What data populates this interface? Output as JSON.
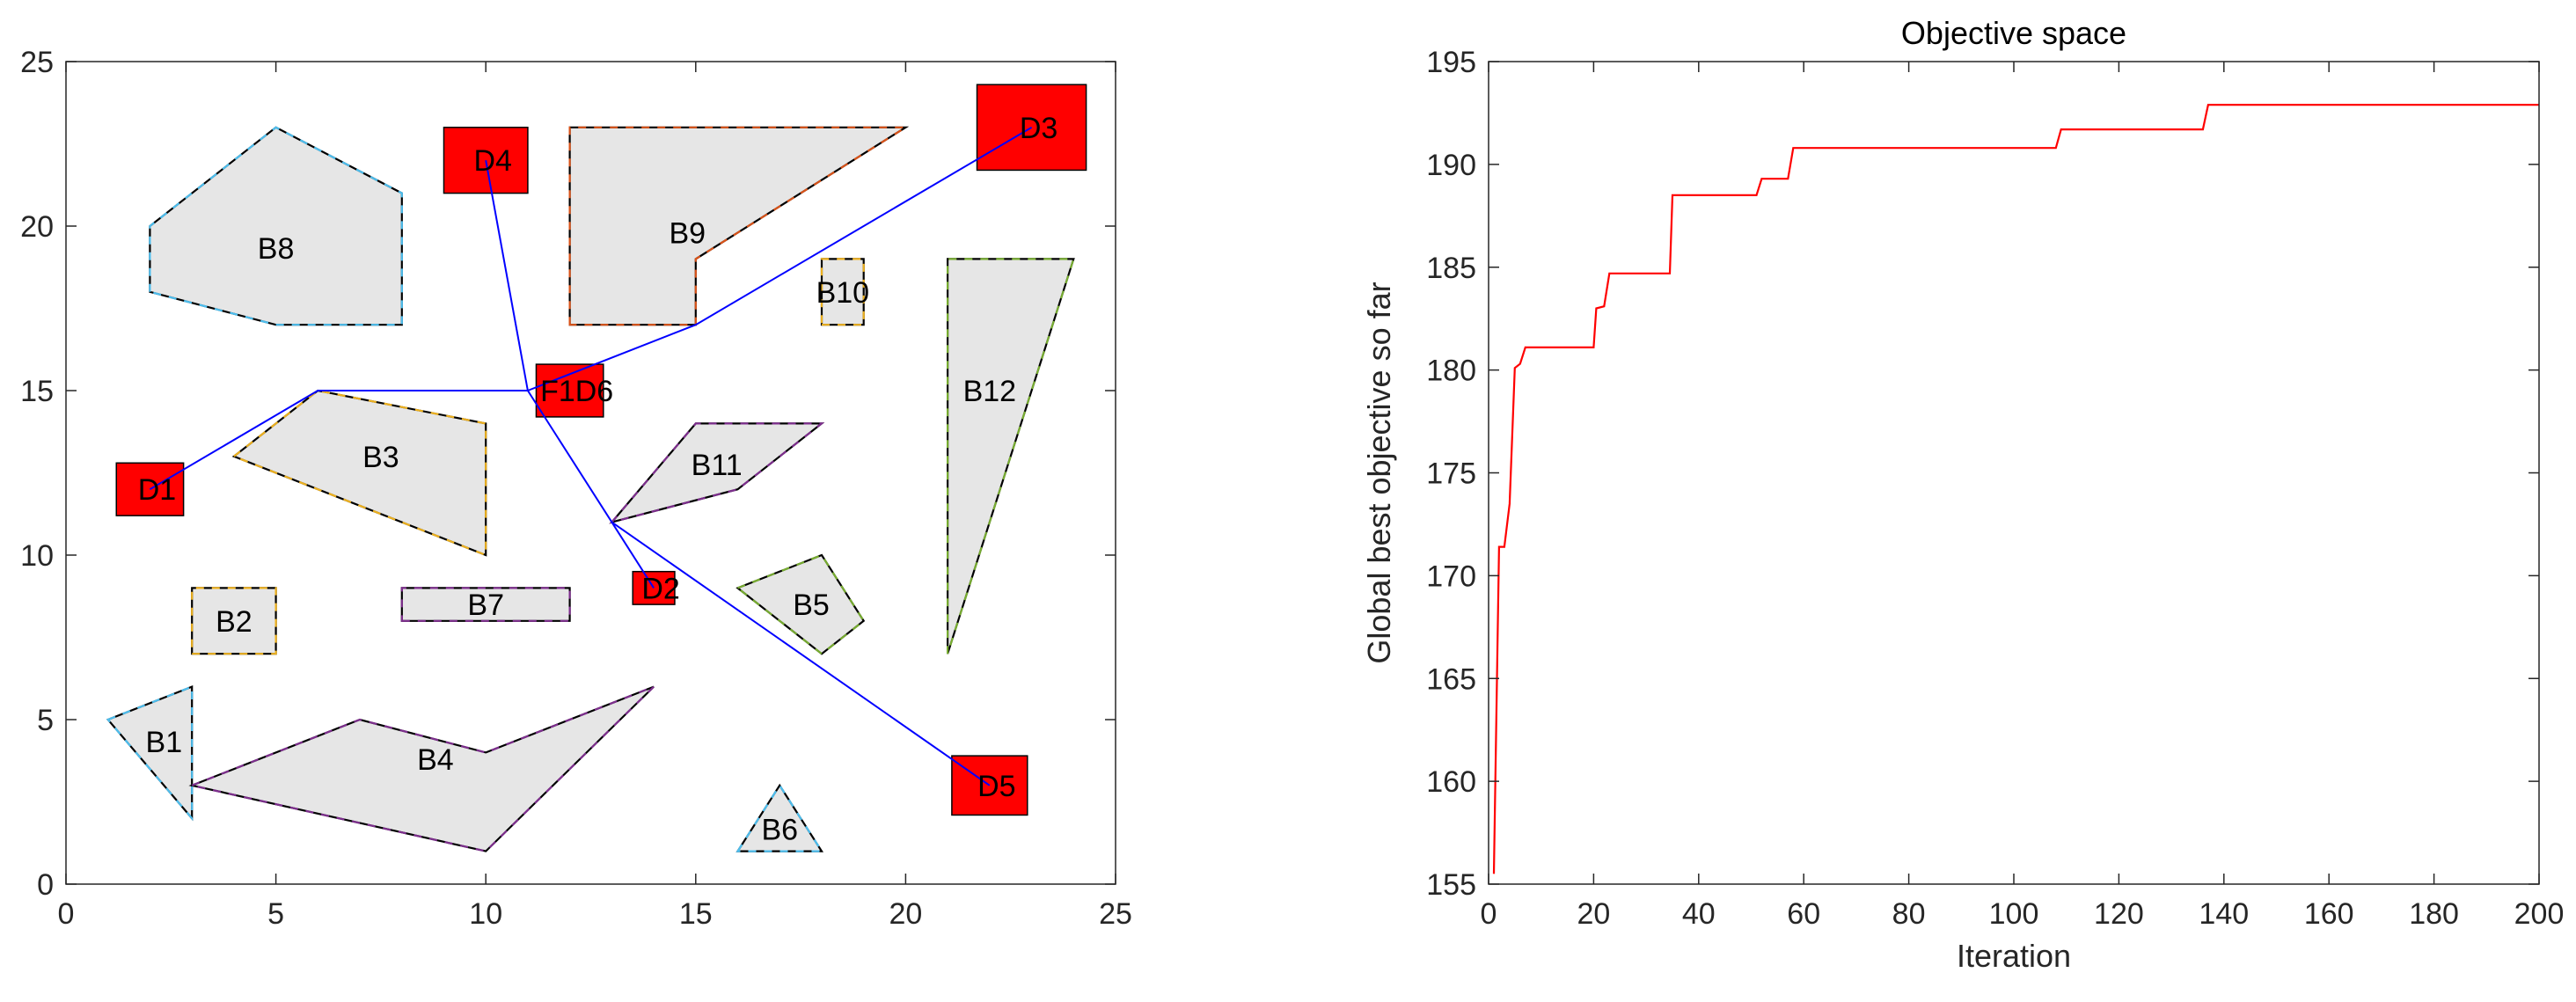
{
  "chart_data": [
    {
      "type": "scatter",
      "title": "",
      "xlabel": "",
      "ylabel": "",
      "xlim": [
        0,
        25
      ],
      "ylim": [
        0,
        25
      ],
      "x_ticks": [
        0,
        5,
        10,
        15,
        20,
        25
      ],
      "y_ticks": [
        0,
        5,
        10,
        15,
        20,
        25
      ],
      "grid": false,
      "obstacles": [
        {
          "label": "B1",
          "vertices": [
            [
              1,
              5
            ],
            [
              3,
              6
            ],
            [
              3,
              2
            ]
          ],
          "edge_color": "#4dbeee"
        },
        {
          "label": "B2",
          "vertices": [
            [
              3,
              7
            ],
            [
              5,
              7
            ],
            [
              5,
              9
            ],
            [
              3,
              9
            ]
          ],
          "edge_color": "#edb120"
        },
        {
          "label": "B3",
          "vertices": [
            [
              4,
              13
            ],
            [
              6,
              15
            ],
            [
              10,
              14
            ],
            [
              10,
              10
            ]
          ],
          "edge_color": "#edb120"
        },
        {
          "label": "B4",
          "vertices": [
            [
              3,
              3
            ],
            [
              7,
              5
            ],
            [
              10,
              4
            ],
            [
              14,
              6
            ],
            [
              10,
              1
            ]
          ],
          "edge_color": "#7e2f8e"
        },
        {
          "label": "B5",
          "vertices": [
            [
              16,
              9
            ],
            [
              18,
              10
            ],
            [
              19,
              8
            ],
            [
              18,
              7
            ]
          ],
          "edge_color": "#77ac30"
        },
        {
          "label": "B6",
          "vertices": [
            [
              16,
              1
            ],
            [
              17,
              3
            ],
            [
              18,
              1
            ]
          ],
          "edge_color": "#4dbeee"
        },
        {
          "label": "B7",
          "vertices": [
            [
              8,
              8
            ],
            [
              12,
              8
            ],
            [
              12,
              9
            ],
            [
              8,
              9
            ]
          ],
          "edge_color": "#7e2f8e"
        },
        {
          "label": "B8",
          "vertices": [
            [
              2,
              18
            ],
            [
              2,
              20
            ],
            [
              5,
              23
            ],
            [
              8,
              21
            ],
            [
              8,
              17
            ],
            [
              5,
              17
            ]
          ],
          "edge_color": "#4dbeee"
        },
        {
          "label": "B9",
          "vertices": [
            [
              12,
              17
            ],
            [
              12,
              23
            ],
            [
              20,
              23
            ],
            [
              15,
              19
            ],
            [
              15,
              17
            ]
          ],
          "edge_color": "#d95319"
        },
        {
          "label": "B10",
          "vertices": [
            [
              18,
              17
            ],
            [
              19,
              17
            ],
            [
              19,
              19
            ],
            [
              18,
              19
            ]
          ],
          "edge_color": "#edb120"
        },
        {
          "label": "B11",
          "vertices": [
            [
              13,
              11
            ],
            [
              15,
              14
            ],
            [
              18,
              14
            ],
            [
              16,
              12
            ]
          ],
          "edge_color": "#7e2f8e"
        },
        {
          "label": "B12",
          "vertices": [
            [
              21,
              7
            ],
            [
              21,
              19
            ],
            [
              24,
              19
            ]
          ],
          "edge_color": "#77ac30"
        }
      ],
      "nodes": [
        {
          "label": "D1",
          "center": [
            2,
            12
          ],
          "w": 1.6,
          "h": 1.6
        },
        {
          "label": "D2",
          "center": [
            14,
            9
          ],
          "w": 1.0,
          "h": 1.0
        },
        {
          "label": "D3",
          "center": [
            23,
            23
          ],
          "w": 2.6,
          "h": 2.6
        },
        {
          "label": "D4",
          "center": [
            10,
            22
          ],
          "w": 2.0,
          "h": 2.0
        },
        {
          "label": "D5",
          "center": [
            22,
            3
          ],
          "w": 1.8,
          "h": 1.8
        },
        {
          "label": "F1D6",
          "center": [
            12,
            15
          ],
          "w": 1.6,
          "h": 1.6
        }
      ],
      "node_color": "#ff0000",
      "paths": [
        [
          [
            11,
            15
          ],
          [
            6,
            15
          ],
          [
            2,
            12
          ]
        ],
        [
          [
            11,
            15
          ],
          [
            10,
            22
          ]
        ],
        [
          [
            11,
            15
          ],
          [
            15,
            17
          ],
          [
            23,
            23
          ]
        ],
        [
          [
            11,
            15
          ],
          [
            13,
            11
          ],
          [
            22,
            3
          ]
        ],
        [
          [
            13,
            11
          ],
          [
            14,
            9
          ]
        ]
      ],
      "path_color": "#0000ff"
    },
    {
      "type": "line",
      "title": "Objective space",
      "xlabel": "Iteration",
      "ylabel": "Global best objective so far",
      "xlim": [
        0,
        200
      ],
      "ylim": [
        155,
        195
      ],
      "x_ticks": [
        0,
        20,
        40,
        60,
        80,
        100,
        120,
        140,
        160,
        180,
        200
      ],
      "y_ticks": [
        155,
        160,
        165,
        170,
        175,
        180,
        185,
        190,
        195
      ],
      "grid": false,
      "series": [
        {
          "color": "#ff0000",
          "points": [
            [
              1,
              155.5
            ],
            [
              2,
              171.4
            ],
            [
              3,
              171.4
            ],
            [
              4,
              173.5
            ],
            [
              5,
              180.1
            ],
            [
              6,
              180.3
            ],
            [
              7,
              181.1
            ],
            [
              20,
              181.1
            ],
            [
              20.5,
              183
            ],
            [
              22,
              183.1
            ],
            [
              23,
              184.7
            ],
            [
              34.5,
              184.7
            ],
            [
              35,
              188.5
            ],
            [
              51,
              188.5
            ],
            [
              52,
              189.3
            ],
            [
              57,
              189.3
            ],
            [
              58,
              190.8
            ],
            [
              108,
              190.8
            ],
            [
              109,
              191.7
            ],
            [
              136,
              191.7
            ],
            [
              137,
              192.9
            ],
            [
              200,
              192.9
            ]
          ]
        }
      ]
    }
  ]
}
